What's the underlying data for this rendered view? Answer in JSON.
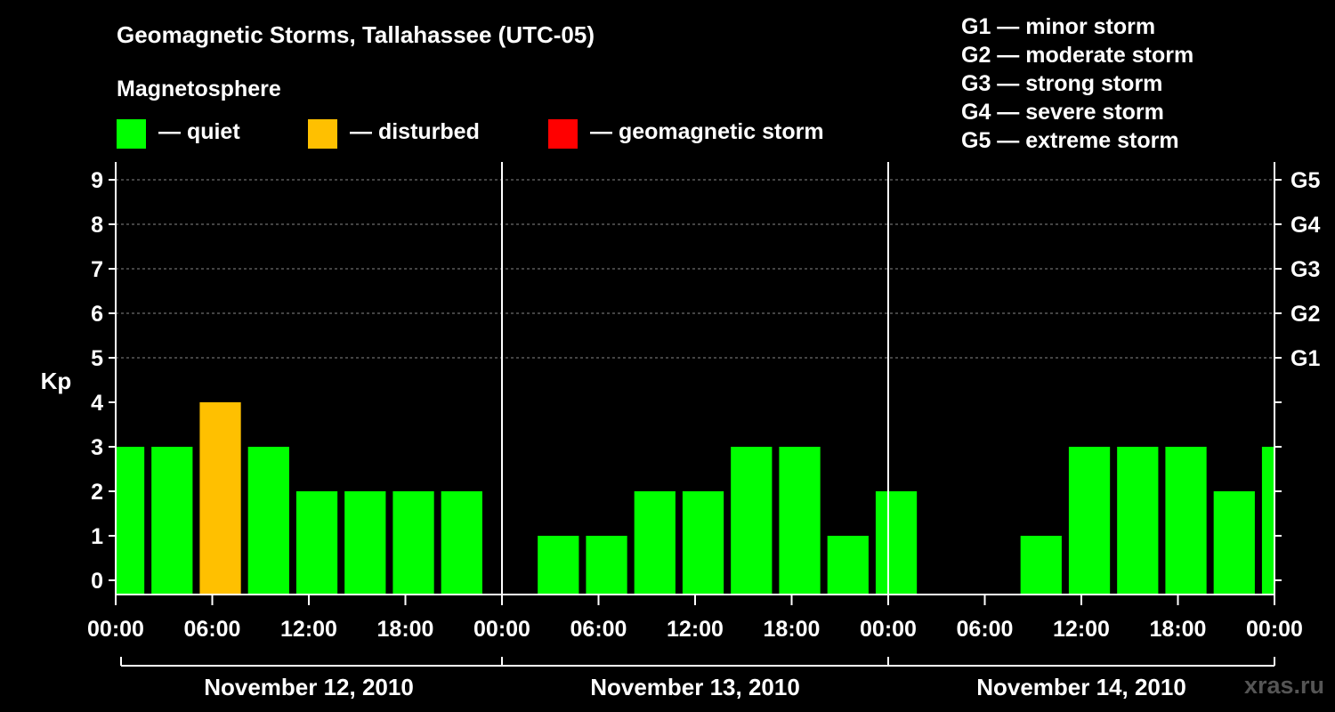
{
  "header": {
    "title": "Geomagnetic Storms, Tallahassee (UTC-05)",
    "subtitle": "Magnetosphere"
  },
  "legend": {
    "items": [
      {
        "label": "— quiet",
        "color": "#00ff00"
      },
      {
        "label": "— disturbed",
        "color": "#ffc000"
      },
      {
        "label": "— geomagnetic storm",
        "color": "#ff0000"
      }
    ]
  },
  "storm_scale": [
    "G1 — minor storm",
    "G2 — moderate storm",
    "G3 — strong storm",
    "G4 — severe storm",
    "G5 — extreme storm"
  ],
  "watermark": "xras.ru",
  "chart_data": {
    "type": "bar",
    "ylabel": "Kp",
    "ylim": [
      0,
      9
    ],
    "yticks": [
      "0",
      "1",
      "2",
      "3",
      "4",
      "5",
      "6",
      "7",
      "8",
      "9"
    ],
    "right_ticks": [
      {
        "kp": 5,
        "label": "G1"
      },
      {
        "kp": 6,
        "label": "G2"
      },
      {
        "kp": 7,
        "label": "G3"
      },
      {
        "kp": 8,
        "label": "G4"
      },
      {
        "kp": 9,
        "label": "G5"
      }
    ],
    "grid": true,
    "hours_total": 72,
    "xtick_labels": [
      "00:00",
      "06:00",
      "12:00",
      "18:00",
      "00:00",
      "06:00",
      "12:00",
      "18:00",
      "00:00",
      "06:00",
      "12:00",
      "18:00",
      "00:00"
    ],
    "days": [
      "November 12, 2010",
      "November 13, 2010",
      "November 14, 2010"
    ],
    "bars": [
      {
        "start": -1,
        "kp": 3,
        "status": "quiet"
      },
      {
        "start": 2,
        "kp": 3,
        "status": "quiet"
      },
      {
        "start": 5,
        "kp": 4,
        "status": "disturbed"
      },
      {
        "start": 8,
        "kp": 3,
        "status": "quiet"
      },
      {
        "start": 11,
        "kp": 2,
        "status": "quiet"
      },
      {
        "start": 14,
        "kp": 2,
        "status": "quiet"
      },
      {
        "start": 17,
        "kp": 2,
        "status": "quiet"
      },
      {
        "start": 20,
        "kp": 2,
        "status": "quiet"
      },
      {
        "start": 23,
        "kp": 0,
        "status": "quiet"
      },
      {
        "start": 26,
        "kp": 1,
        "status": "quiet"
      },
      {
        "start": 29,
        "kp": 1,
        "status": "quiet"
      },
      {
        "start": 32,
        "kp": 2,
        "status": "quiet"
      },
      {
        "start": 35,
        "kp": 2,
        "status": "quiet"
      },
      {
        "start": 38,
        "kp": 3,
        "status": "quiet"
      },
      {
        "start": 41,
        "kp": 3,
        "status": "quiet"
      },
      {
        "start": 44,
        "kp": 1,
        "status": "quiet"
      },
      {
        "start": 47,
        "kp": 2,
        "status": "quiet"
      },
      {
        "start": 50,
        "kp": 0,
        "status": "quiet"
      },
      {
        "start": 53,
        "kp": 0,
        "status": "quiet"
      },
      {
        "start": 56,
        "kp": 1,
        "status": "quiet"
      },
      {
        "start": 59,
        "kp": 3,
        "status": "quiet"
      },
      {
        "start": 62,
        "kp": 3,
        "status": "quiet"
      },
      {
        "start": 65,
        "kp": 3,
        "status": "quiet"
      },
      {
        "start": 68,
        "kp": 2,
        "status": "quiet"
      },
      {
        "start": 71,
        "kp": 3,
        "status": "quiet"
      }
    ],
    "status_colors": {
      "quiet": "#00ff00",
      "disturbed": "#ffc000",
      "storm": "#ff0000"
    }
  }
}
